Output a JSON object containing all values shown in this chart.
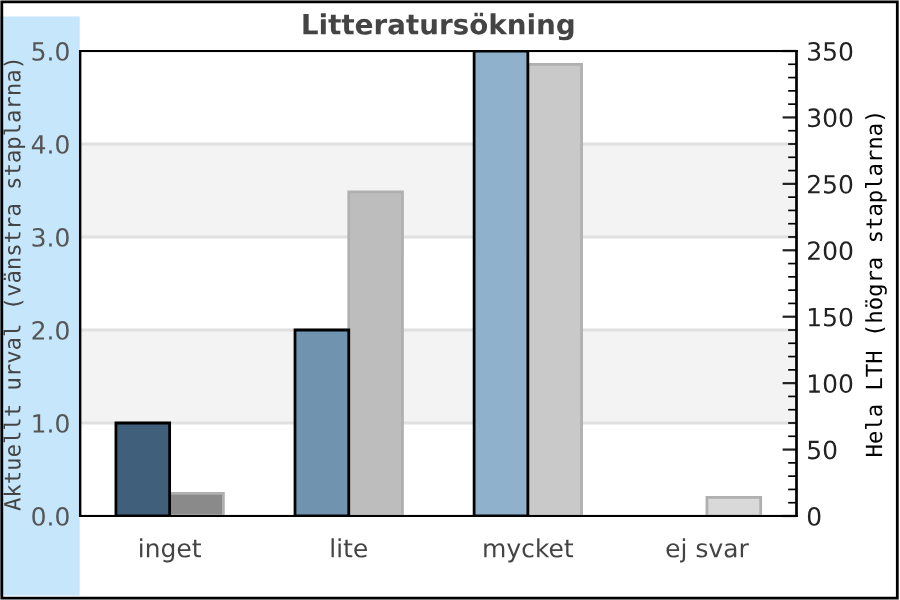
{
  "chart_data": {
    "type": "bar",
    "title": "Litteratursökning",
    "ylabel": "Aktuellt urval (vänstra staplarna)",
    "y2label": "Hela LTH (högra staplarna)",
    "categories": [
      "inget",
      "lite",
      "mycket",
      "ej svar"
    ],
    "series": [
      {
        "colors": [
          "#3f5f7a",
          "#7093b0",
          "#8fb1cc",
          null
        ],
        "values": [
          1.0,
          2.0,
          5.0,
          null
        ]
      },
      {
        "axis": "y2",
        "colors": [
          "#8a8a8a",
          "#bdbdbd",
          "#c9c9c9",
          "#d9d9d9"
        ],
        "values": [
          17,
          244,
          340,
          14
        ]
      }
    ],
    "ylim": [
      0,
      5
    ],
    "yticks": [
      {
        "value": 0,
        "label": "0.0"
      },
      {
        "value": 1,
        "label": "1.0"
      },
      {
        "value": 2,
        "label": "2.0"
      },
      {
        "value": 3,
        "label": "3.0"
      },
      {
        "value": 4,
        "label": "4.0"
      },
      {
        "value": 5,
        "label": "5.0"
      }
    ],
    "y2lim": [
      0,
      350
    ],
    "y2ticks": [
      0,
      50,
      100,
      150,
      200,
      250,
      300,
      350
    ],
    "bands": [
      {
        "axis": "y",
        "from": 1,
        "to": 2,
        "color": "#f3f3f3"
      },
      {
        "axis": "y",
        "from": 3,
        "to": 4,
        "color": "#f3f3f3"
      }
    ],
    "grid": "y",
    "legend": false
  }
}
